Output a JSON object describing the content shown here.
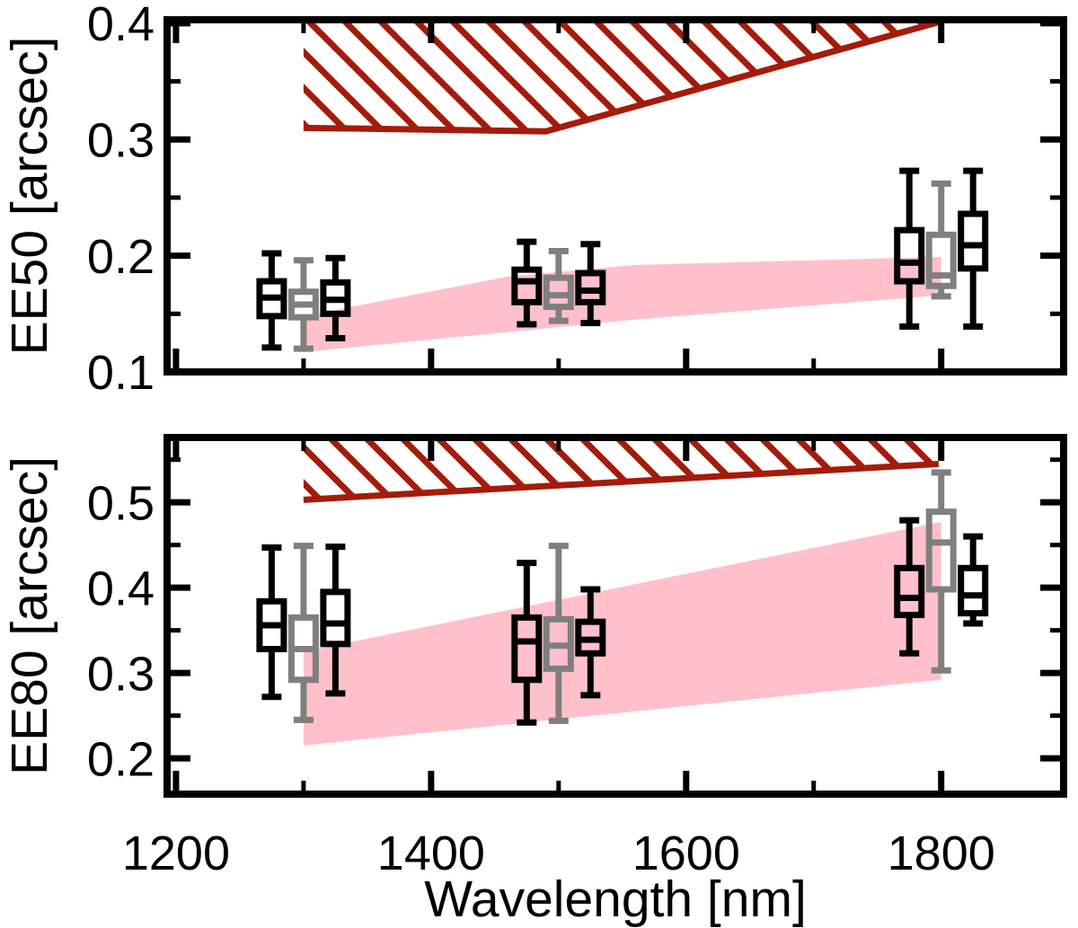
{
  "chart_data": {
    "type": "boxplot",
    "xlabel": "Wavelength [nm]",
    "xlim": [
      1193,
      1896
    ],
    "x_ticks_major": [
      1200,
      1400,
      1600,
      1800
    ],
    "x_tick_labels": [
      "1200",
      "1400",
      "1600",
      "1800"
    ],
    "x_ticks_minor": [
      1300,
      1500,
      1700
    ],
    "legend": "none",
    "grid": "off",
    "colors": {
      "box_black": "#000000",
      "box_gray": "#7f7f7f",
      "hatch_red": "#a51b0a",
      "band_pink": "#ffc0cb",
      "axis": "#000000",
      "background": "#ffffff"
    },
    "panels": [
      {
        "name": "EE50",
        "ylabel": "EE50 [arcsec]",
        "ylim": [
          0.1,
          0.403
        ],
        "y_ticks_major": [
          0.1,
          0.2,
          0.3,
          0.4
        ],
        "y_tick_labels": [
          "0.1",
          "0.2",
          "0.3",
          "0.4"
        ],
        "y_ticks_minor": [
          0.15,
          0.25,
          0.35
        ],
        "hatched_band": {
          "x_start": 1300,
          "x_end": 1798,
          "lower_boundary": [
            [
              1300,
              0.31
            ],
            [
              1490,
              0.307
            ],
            [
              1798,
              0.401
            ]
          ],
          "clipped_at_top": true
        },
        "pink_band": {
          "upper_edge": [
            [
              1300,
              0.148
            ],
            [
              1460,
              0.182
            ],
            [
              1560,
              0.192
            ],
            [
              1800,
              0.199
            ]
          ],
          "lower_edge": [
            [
              1300,
              0.117
            ],
            [
              1560,
              0.145
            ],
            [
              1800,
              0.166
            ]
          ]
        },
        "boxplots": [
          {
            "x": 1275,
            "color": "black",
            "low": 0.121,
            "q1": 0.148,
            "median": 0.164,
            "q3": 0.178,
            "high": 0.202
          },
          {
            "x": 1300,
            "color": "gray",
            "low": 0.12,
            "q1": 0.147,
            "median": 0.158,
            "q3": 0.169,
            "high": 0.196
          },
          {
            "x": 1325,
            "color": "black",
            "low": 0.129,
            "q1": 0.15,
            "median": 0.162,
            "q3": 0.177,
            "high": 0.198
          },
          {
            "x": 1475,
            "color": "black",
            "low": 0.141,
            "q1": 0.16,
            "median": 0.178,
            "q3": 0.188,
            "high": 0.212
          },
          {
            "x": 1500,
            "color": "gray",
            "low": 0.144,
            "q1": 0.156,
            "median": 0.166,
            "q3": 0.181,
            "high": 0.204
          },
          {
            "x": 1525,
            "color": "black",
            "low": 0.142,
            "q1": 0.16,
            "median": 0.17,
            "q3": 0.185,
            "high": 0.21
          },
          {
            "x": 1775,
            "color": "black",
            "low": 0.139,
            "q1": 0.178,
            "median": 0.194,
            "q3": 0.222,
            "high": 0.273
          },
          {
            "x": 1800,
            "color": "gray",
            "low": 0.165,
            "q1": 0.174,
            "median": 0.183,
            "q3": 0.218,
            "high": 0.262
          },
          {
            "x": 1825,
            "color": "black",
            "low": 0.139,
            "q1": 0.189,
            "median": 0.209,
            "q3": 0.236,
            "high": 0.273
          }
        ]
      },
      {
        "name": "EE80",
        "ylabel": "EE80 [arcsec]",
        "ylim": [
          0.158,
          0.576
        ],
        "y_ticks_major": [
          0.2,
          0.3,
          0.4,
          0.5
        ],
        "y_tick_labels": [
          "0.2",
          "0.3",
          "0.4",
          "0.5"
        ],
        "y_ticks_minor": [
          0.25,
          0.35,
          0.45,
          0.55
        ],
        "hatched_band": {
          "x_start": 1300,
          "x_end": 1798,
          "lower_boundary": [
            [
              1300,
              0.503
            ],
            [
              1798,
              0.545
            ]
          ],
          "clipped_at_top": true
        },
        "pink_band": {
          "upper_edge": [
            [
              1300,
              0.325
            ],
            [
              1800,
              0.477
            ]
          ],
          "lower_edge": [
            [
              1300,
              0.215
            ],
            [
              1800,
              0.292
            ]
          ]
        },
        "boxplots": [
          {
            "x": 1275,
            "color": "black",
            "low": 0.272,
            "q1": 0.328,
            "median": 0.356,
            "q3": 0.384,
            "high": 0.447
          },
          {
            "x": 1300,
            "color": "gray",
            "low": 0.245,
            "q1": 0.292,
            "median": 0.328,
            "q3": 0.365,
            "high": 0.449
          },
          {
            "x": 1325,
            "color": "black",
            "low": 0.276,
            "q1": 0.334,
            "median": 0.358,
            "q3": 0.395,
            "high": 0.448
          },
          {
            "x": 1475,
            "color": "black",
            "low": 0.242,
            "q1": 0.292,
            "median": 0.337,
            "q3": 0.365,
            "high": 0.429
          },
          {
            "x": 1500,
            "color": "gray",
            "low": 0.244,
            "q1": 0.305,
            "median": 0.332,
            "q3": 0.363,
            "high": 0.449
          },
          {
            "x": 1525,
            "color": "black",
            "low": 0.274,
            "q1": 0.323,
            "median": 0.339,
            "q3": 0.36,
            "high": 0.398
          },
          {
            "x": 1775,
            "color": "black",
            "low": 0.323,
            "q1": 0.368,
            "median": 0.388,
            "q3": 0.423,
            "high": 0.479
          },
          {
            "x": 1800,
            "color": "gray",
            "low": 0.303,
            "q1": 0.398,
            "median": 0.453,
            "q3": 0.489,
            "high": 0.535
          },
          {
            "x": 1825,
            "color": "black",
            "low": 0.358,
            "q1": 0.37,
            "median": 0.391,
            "q3": 0.423,
            "high": 0.46
          }
        ]
      }
    ]
  }
}
